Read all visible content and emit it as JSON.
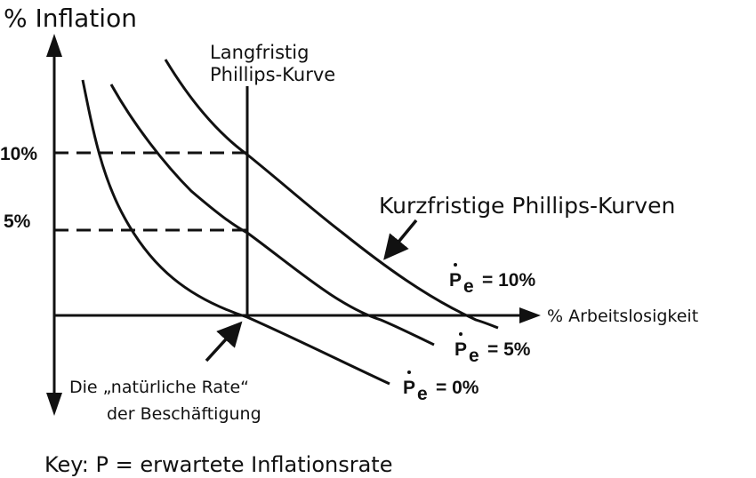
{
  "y_axis_title": "% Inflation",
  "x_axis_title": "% Arbeitslosigkeit",
  "y_ticks": {
    "ten": "10%",
    "five": "5%"
  },
  "long_run_curve": {
    "line1": "Langfristig",
    "line2": "Phillips-Kurve"
  },
  "short_run_label": "Kurzfristige Phillips-Kurven",
  "expectations": {
    "pe_10": {
      "symbol": "P",
      "subscript": "e",
      "value": "= 10%"
    },
    "pe_5": {
      "symbol": "P",
      "subscript": "e",
      "value": "= 5%"
    },
    "pe_0": {
      "symbol": "P",
      "subscript": "e",
      "value": "= 0%"
    }
  },
  "natural_rate": {
    "line1": "Die „natürliche Rate“",
    "line2": "der Beschäftigung"
  },
  "key_text": "Key: P = erwartete Inflationsrate",
  "colors": {
    "ink": "#111111",
    "background": "#ffffff"
  }
}
